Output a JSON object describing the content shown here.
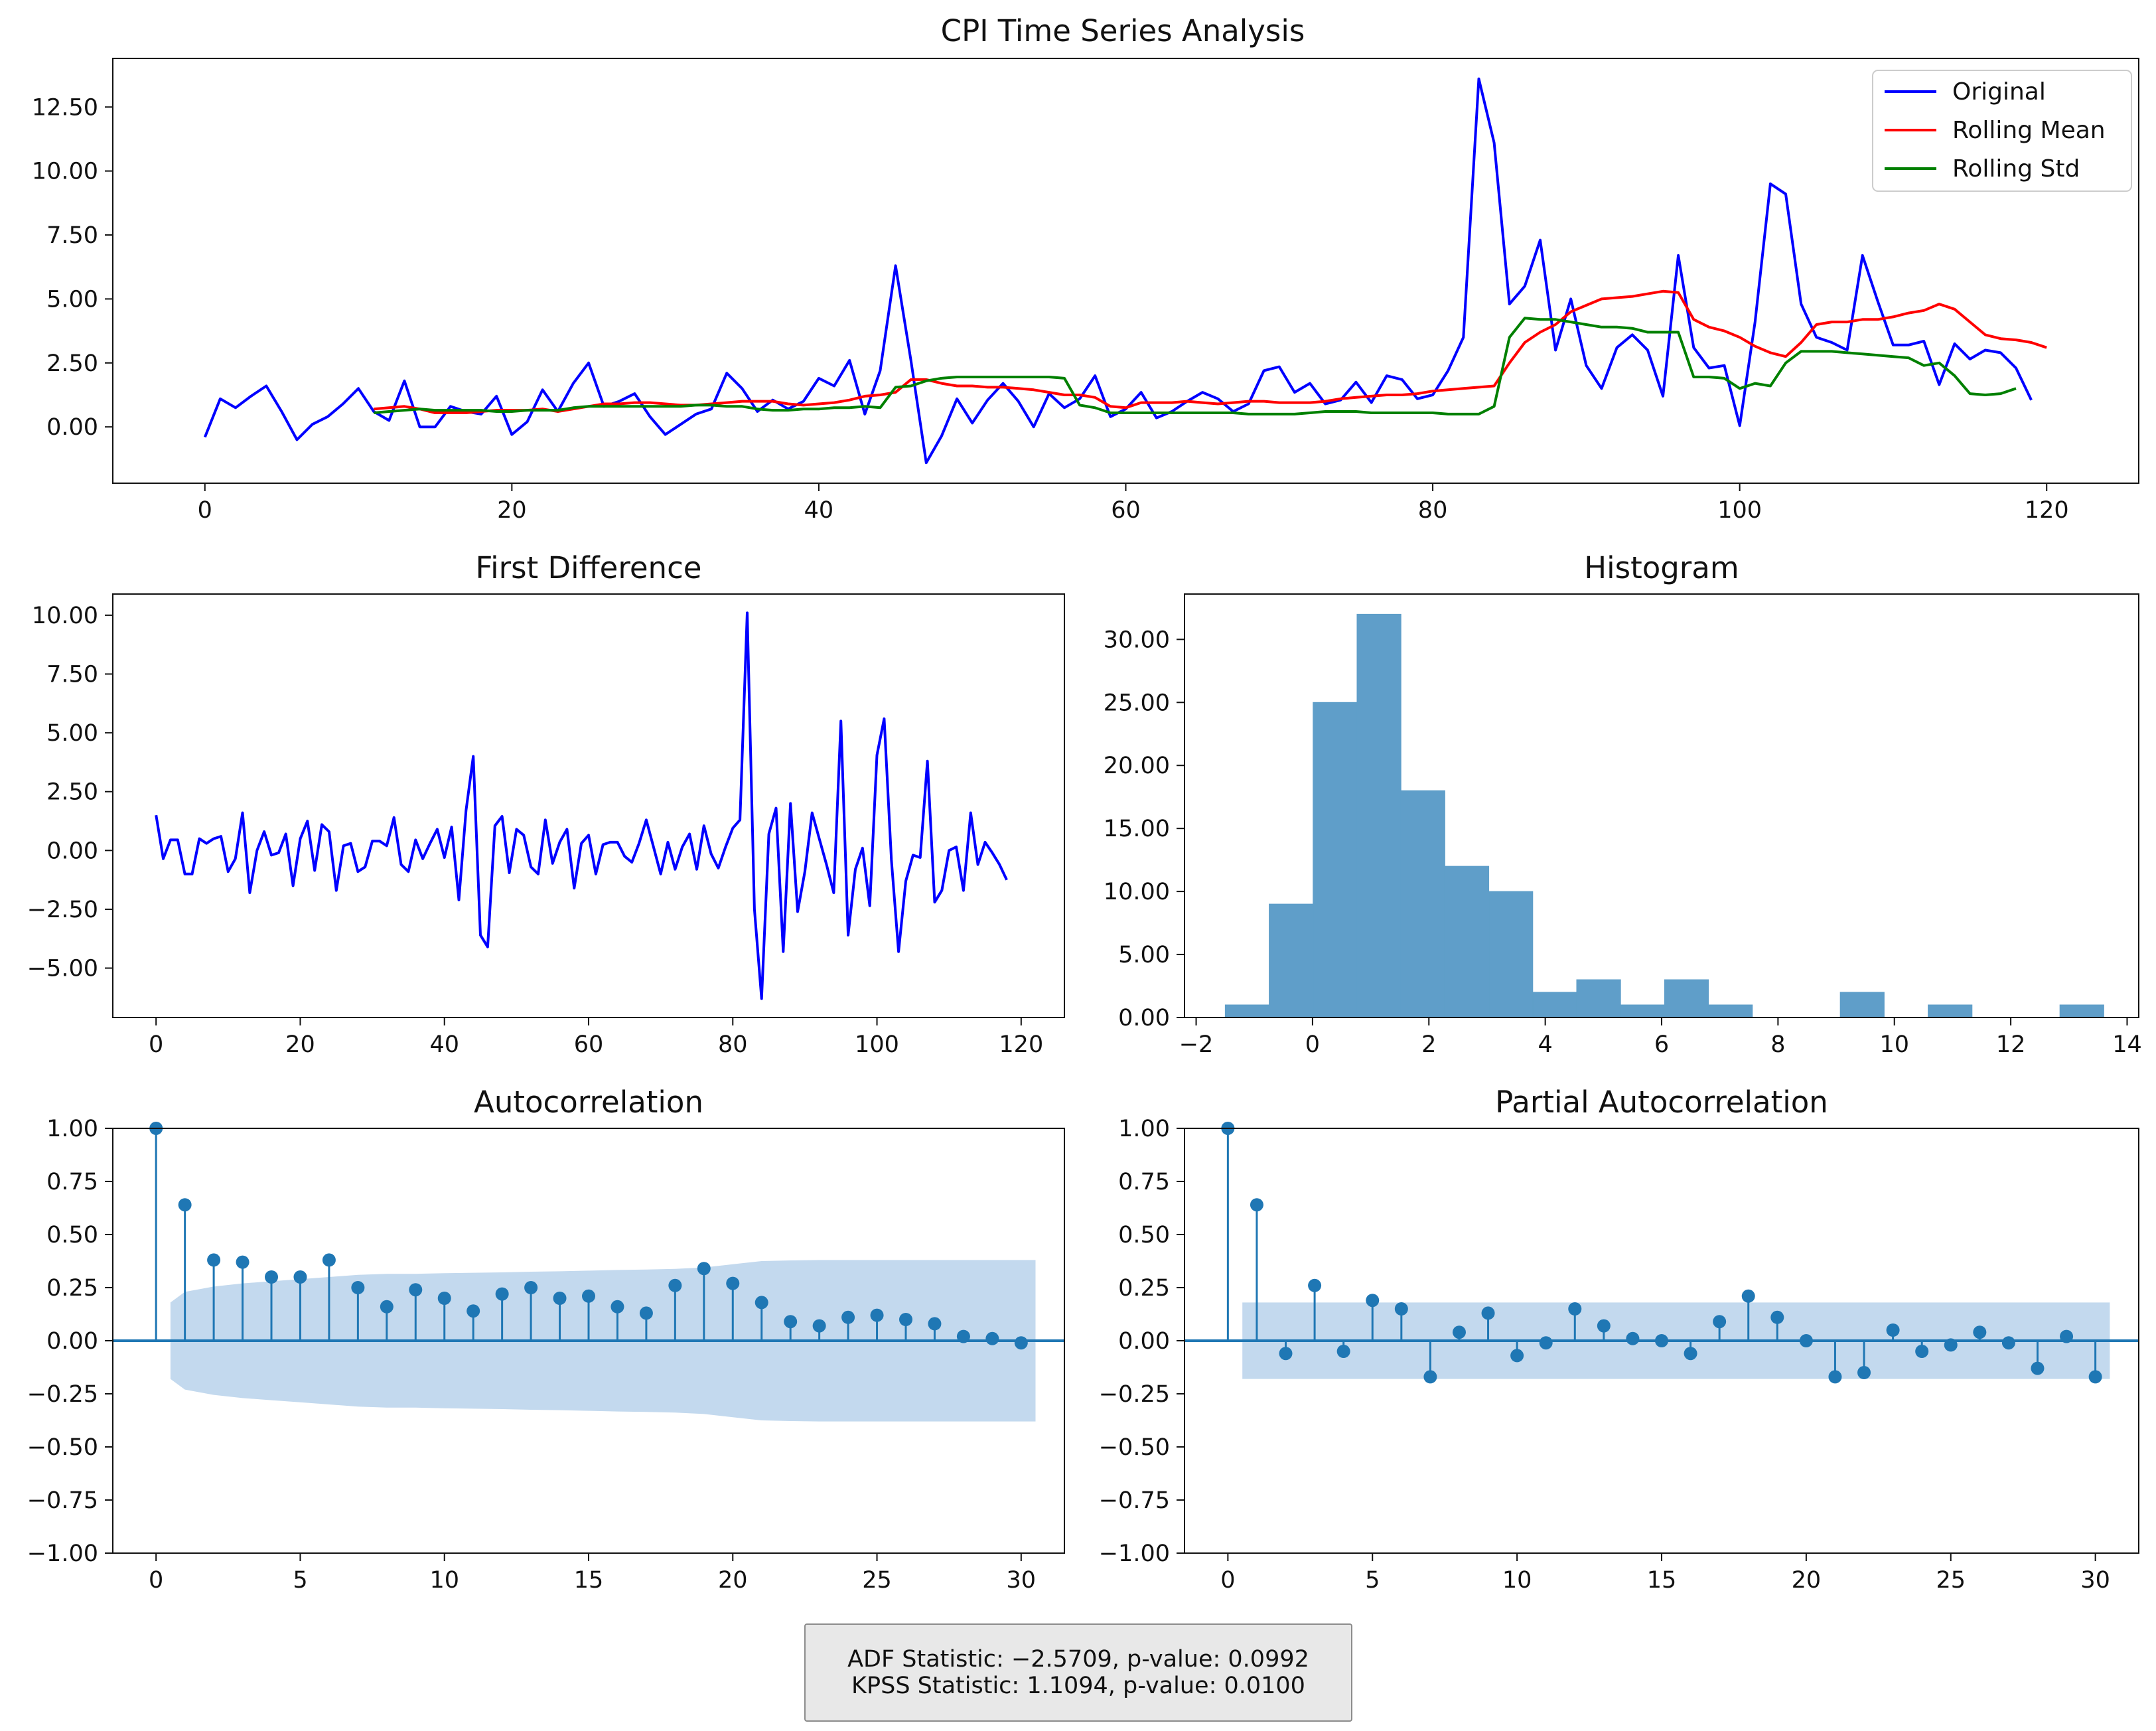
{
  "figure_title": "CPI Time Series Analysis",
  "stats": {
    "adf": "ADF Statistic: −2.5709, p-value: 0.0992",
    "kpss": "KPSS Statistic: 1.1094, p-value: 0.0100"
  },
  "colors": {
    "original": "#0000ff",
    "rolling_mean": "#ff0000",
    "rolling_std": "#008000",
    "hist": "#5f9ec9",
    "stem": "#1f77b4",
    "confint": "#c3d9ee"
  },
  "chart_data": [
    {
      "id": "timeseries",
      "type": "line",
      "title": "",
      "xlim": [
        -6,
        126
      ],
      "ylim": [
        -2.2,
        14.4
      ],
      "xticks": [
        "0",
        "20",
        "40",
        "60",
        "80",
        "100",
        "120"
      ],
      "yticks": [
        "0.00",
        "2.50",
        "5.00",
        "7.50",
        "10.00",
        "12.50"
      ],
      "legend": "top-right",
      "series": [
        {
          "name": "Original",
          "color": "#0000ff",
          "x_start": 0,
          "values": [
            -0.4,
            1.1,
            0.75,
            1.2,
            1.6,
            0.6,
            -0.5,
            0.1,
            0.4,
            0.9,
            1.5,
            0.6,
            0.25,
            1.8,
            0.0,
            0.0,
            0.8,
            0.6,
            0.5,
            1.2,
            -0.3,
            0.2,
            1.45,
            0.6,
            1.7,
            2.5,
            0.8,
            1.0,
            1.3,
            0.4,
            -0.3,
            0.1,
            0.5,
            0.7,
            2.1,
            1.5,
            0.6,
            1.05,
            0.7,
            1.0,
            1.9,
            1.6,
            2.6,
            0.5,
            2.2,
            6.3,
            2.6,
            -1.4,
            -0.35,
            1.1,
            0.15,
            1.05,
            1.7,
            1.0,
            0.0,
            1.3,
            0.75,
            1.1,
            2.0,
            0.4,
            0.7,
            1.35,
            0.35,
            0.6,
            1.0,
            1.35,
            1.1,
            0.6,
            0.9,
            2.2,
            2.35,
            1.35,
            1.7,
            0.9,
            1.05,
            1.75,
            0.95,
            2.0,
            1.85,
            1.1,
            1.25,
            2.2,
            3.5,
            13.6,
            11.1,
            4.8,
            5.5,
            7.3,
            3.0,
            5.0,
            2.4,
            1.5,
            3.1,
            3.6,
            3.0,
            1.2,
            6.7,
            3.1,
            2.3,
            2.4,
            0.05,
            4.1,
            9.5,
            9.1,
            4.8,
            3.5,
            3.3,
            3.0,
            6.7,
            4.9,
            3.2,
            3.2,
            3.35,
            1.65,
            3.25,
            2.65,
            3.0,
            2.9,
            2.3,
            1.05
          ]
        },
        {
          "name": "Rolling Mean",
          "color": "#ff0000",
          "x_start": 11,
          "values": [
            0.7,
            0.75,
            0.8,
            0.7,
            0.55,
            0.55,
            0.55,
            0.6,
            0.65,
            0.65,
            0.65,
            0.7,
            0.6,
            0.7,
            0.8,
            0.9,
            0.9,
            0.95,
            0.95,
            0.9,
            0.85,
            0.85,
            0.9,
            0.95,
            1.0,
            1.0,
            1.0,
            0.9,
            0.85,
            0.9,
            0.95,
            1.05,
            1.2,
            1.25,
            1.35,
            1.85,
            1.85,
            1.7,
            1.6,
            1.6,
            1.55,
            1.55,
            1.5,
            1.45,
            1.35,
            1.25,
            1.25,
            1.15,
            0.8,
            0.75,
            0.95,
            0.95,
            0.95,
            1.0,
            0.95,
            0.9,
            0.95,
            1.0,
            1.0,
            0.95,
            0.95,
            0.95,
            1.0,
            1.1,
            1.15,
            1.2,
            1.25,
            1.25,
            1.3,
            1.4,
            1.45,
            1.5,
            1.55,
            1.6,
            2.5,
            3.3,
            3.7,
            4.0,
            4.5,
            4.75,
            5.0,
            5.05,
            5.1,
            5.2,
            5.3,
            5.25,
            4.2,
            3.9,
            3.75,
            3.5,
            3.15,
            2.9,
            2.75,
            3.3,
            4.0,
            4.1,
            4.1,
            4.2,
            4.2,
            4.3,
            4.45,
            4.55,
            4.8,
            4.6,
            4.1,
            3.6,
            3.45,
            3.4,
            3.3,
            3.1
          ]
        },
        {
          "name": "Rolling Std",
          "color": "#008000",
          "x_start": 11,
          "values": [
            0.55,
            0.6,
            0.65,
            0.7,
            0.65,
            0.65,
            0.65,
            0.65,
            0.6,
            0.6,
            0.65,
            0.65,
            0.65,
            0.75,
            0.8,
            0.8,
            0.8,
            0.8,
            0.8,
            0.8,
            0.8,
            0.85,
            0.85,
            0.8,
            0.8,
            0.7,
            0.65,
            0.65,
            0.7,
            0.7,
            0.75,
            0.75,
            0.8,
            0.75,
            1.55,
            1.6,
            1.8,
            1.9,
            1.95,
            1.95,
            1.95,
            1.95,
            1.95,
            1.95,
            1.95,
            1.9,
            0.85,
            0.75,
            0.55,
            0.55,
            0.55,
            0.55,
            0.55,
            0.55,
            0.55,
            0.55,
            0.55,
            0.5,
            0.5,
            0.5,
            0.5,
            0.55,
            0.6,
            0.6,
            0.6,
            0.55,
            0.55,
            0.55,
            0.55,
            0.55,
            0.5,
            0.5,
            0.5,
            0.8,
            3.5,
            4.25,
            4.2,
            4.2,
            4.1,
            4.0,
            3.9,
            3.9,
            3.85,
            3.7,
            3.7,
            3.7,
            1.95,
            1.95,
            1.9,
            1.5,
            1.7,
            1.6,
            2.5,
            2.95,
            2.95,
            2.95,
            2.9,
            2.85,
            2.8,
            2.75,
            2.7,
            2.4,
            2.5,
            2.0,
            1.3,
            1.25,
            1.3,
            1.5
          ]
        }
      ]
    },
    {
      "id": "first-difference",
      "type": "line",
      "title": "First Difference",
      "xlim": [
        -6,
        126
      ],
      "ylim": [
        -7.1,
        10.9
      ],
      "xticks": [
        "0",
        "20",
        "40",
        "60",
        "80",
        "100",
        "120"
      ],
      "yticks": [
        "−5.00",
        "−2.50",
        "0.00",
        "2.50",
        "5.00",
        "7.50",
        "10.00"
      ],
      "series": [
        {
          "name": "",
          "color": "#0000ff",
          "x_start": 0,
          "values": [
            1.5,
            -0.35,
            0.45,
            0.45,
            -1.0,
            -1.0,
            0.5,
            0.3,
            0.5,
            0.6,
            -0.9,
            -0.35,
            1.6,
            -1.8,
            0.0,
            0.8,
            -0.2,
            -0.1,
            0.7,
            -1.5,
            0.5,
            1.25,
            -0.85,
            1.1,
            0.8,
            -1.7,
            0.2,
            0.3,
            -0.9,
            -0.7,
            0.4,
            0.4,
            0.2,
            1.4,
            -0.6,
            -0.9,
            0.45,
            -0.35,
            0.3,
            0.9,
            -0.3,
            1.0,
            -2.1,
            1.7,
            4.0,
            -3.6,
            -4.1,
            1.05,
            1.45,
            -0.95,
            0.9,
            0.65,
            -0.7,
            -1.0,
            1.3,
            -0.55,
            0.35,
            0.9,
            -1.6,
            0.3,
            0.65,
            -1.0,
            0.25,
            0.35,
            0.35,
            -0.25,
            -0.5,
            0.3,
            1.3,
            0.15,
            -1.0,
            0.35,
            -0.8,
            0.15,
            0.7,
            -0.8,
            1.05,
            -0.15,
            -0.75,
            0.15,
            0.95,
            1.3,
            10.1,
            -2.5,
            -6.3,
            0.7,
            1.8,
            -4.3,
            2.0,
            -2.6,
            -0.9,
            1.6,
            0.5,
            -0.6,
            -1.8,
            5.5,
            -3.6,
            -0.8,
            0.1,
            -2.35,
            4.05,
            5.6,
            -0.4,
            -4.3,
            -1.3,
            -0.2,
            -0.3,
            3.8,
            -2.2,
            -1.7,
            0.0,
            0.15,
            -1.7,
            1.6,
            -0.6,
            0.35,
            -0.1,
            -0.6,
            -1.25
          ]
        }
      ]
    },
    {
      "id": "histogram",
      "type": "bar",
      "title": "Histogram",
      "xlim": [
        -2.2,
        14.2
      ],
      "ylim": [
        0,
        33.6
      ],
      "xticks": [
        "−2",
        "0",
        "2",
        "4",
        "6",
        "8",
        "10",
        "12",
        "14"
      ],
      "yticks": [
        "0.00",
        "5.00",
        "10.00",
        "15.00",
        "20.00",
        "25.00",
        "30.00"
      ],
      "bin_start": -1.5,
      "bin_width": 0.755,
      "values": [
        1,
        9,
        25,
        32,
        18,
        12,
        10,
        2,
        3,
        1,
        3,
        1,
        0,
        0,
        2,
        0,
        1,
        0,
        0,
        1
      ]
    },
    {
      "id": "acf",
      "type": "stem",
      "title": "Autocorrelation",
      "xlim": [
        -1.5,
        31.5
      ],
      "ylim": [
        -1,
        1
      ],
      "xticks": [
        "0",
        "5",
        "10",
        "15",
        "20",
        "25",
        "30"
      ],
      "yticks": [
        "−1.00",
        "−0.75",
        "−0.50",
        "−0.25",
        "0.00",
        "0.25",
        "0.50",
        "0.75",
        "1.00"
      ],
      "values": [
        1.0,
        0.64,
        0.38,
        0.37,
        0.3,
        0.3,
        0.38,
        0.25,
        0.16,
        0.24,
        0.2,
        0.14,
        0.22,
        0.25,
        0.2,
        0.21,
        0.16,
        0.13,
        0.26,
        0.34,
        0.27,
        0.18,
        0.09,
        0.07,
        0.11,
        0.12,
        0.1,
        0.08,
        0.02,
        0.01,
        -0.01
      ],
      "confint": [
        0.18,
        0.23,
        0.255,
        0.27,
        0.28,
        0.29,
        0.3,
        0.31,
        0.315,
        0.315,
        0.318,
        0.32,
        0.322,
        0.325,
        0.327,
        0.33,
        0.333,
        0.335,
        0.338,
        0.345,
        0.36,
        0.375,
        0.378,
        0.38,
        0.38,
        0.38,
        0.38,
        0.38,
        0.38,
        0.38,
        0.38
      ]
    },
    {
      "id": "pacf",
      "type": "stem",
      "title": "Partial Autocorrelation",
      "xlim": [
        -1.5,
        31.5
      ],
      "ylim": [
        -1,
        1
      ],
      "xticks": [
        "0",
        "5",
        "10",
        "15",
        "20",
        "25",
        "30"
      ],
      "yticks": [
        "−1.00",
        "−0.75",
        "−0.50",
        "−0.25",
        "0.00",
        "0.25",
        "0.50",
        "0.75",
        "1.00"
      ],
      "values": [
        1.0,
        0.64,
        -0.06,
        0.26,
        -0.05,
        0.19,
        0.15,
        -0.17,
        0.04,
        0.13,
        -0.07,
        -0.01,
        0.15,
        0.07,
        0.01,
        0.0,
        -0.06,
        0.09,
        0.21,
        0.11,
        0.0,
        -0.17,
        -0.15,
        0.05,
        -0.05,
        -0.02,
        0.04,
        -0.01,
        -0.13,
        0.02,
        -0.17
      ],
      "confint_value": 0.18
    }
  ]
}
